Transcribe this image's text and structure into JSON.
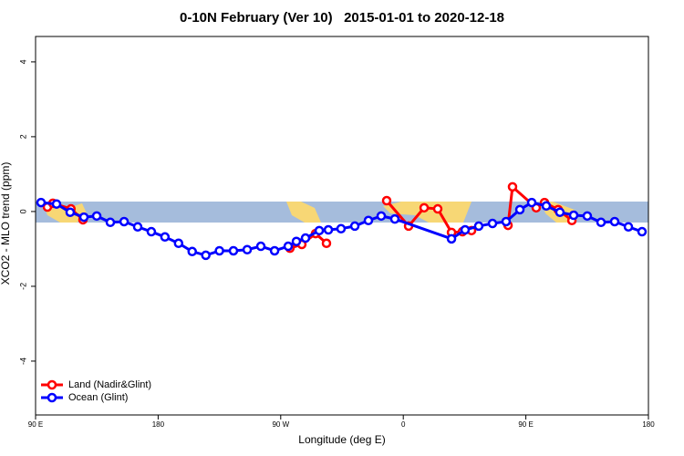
{
  "chart_data": {
    "type": "line",
    "title": "0-10N February (Ver 10)   2015-01-01 to 2020-12-18",
    "x_label": "Longitude (deg E)",
    "y_label": "XCO2 - MLO trend (ppm)",
    "xlim": [
      90,
      540
    ],
    "xticks": [
      {
        "value": 90,
        "label": "90 E"
      },
      180,
      {
        "value": 270,
        "label": "90 W"
      },
      {
        "value": 360,
        "label": "0"
      },
      {
        "value": 450,
        "label": "90 E"
      },
      {
        "value": 540,
        "label": "180"
      }
    ],
    "ylim": [
      -5.44,
      4.68
    ],
    "yticks": [
      -4,
      -2,
      0,
      2,
      4
    ],
    "legend": "bottomleft",
    "series": [
      {
        "name": "Land (Nadir&Glint)",
        "color": "#ff0000",
        "x": [
          98.7,
          102.7,
          116,
          124.8,
          null,
          276.8,
          285.5,
          295.6,
          303.6,
          null,
          347.8,
          363.9,
          375.3,
          385.3,
          395.4,
          403.4,
          410.1,
          null,
          436.9,
          440.2,
          457.6,
          463.7,
          473.7,
          483.8
        ],
        "values": [
          0.12,
          0.22,
          0.07,
          -0.22,
          null,
          -0.98,
          -0.88,
          -0.59,
          -0.85,
          null,
          0.29,
          -0.39,
          0.1,
          0.07,
          -0.56,
          -0.54,
          -0.51,
          null,
          -0.37,
          0.66,
          0.1,
          0.24,
          0.05,
          -0.24
        ]
      },
      {
        "name": "Ocean (Glint)",
        "color": "#0000ff",
        "x": [
          94,
          105.4,
          115.4,
          125.5,
          134.9,
          144.9,
          155,
          165,
          175,
          185,
          195,
          205,
          215,
          225,
          235.3,
          245.4,
          255.4,
          265.5,
          275.5,
          281.5,
          288.2,
          298.3,
          305,
          314.3,
          324.4,
          334.4,
          343.8,
          353.8,
          395.4,
          405.4,
          415.4,
          425.5,
          435.5,
          445.6,
          454.3,
          465,
          475,
          485.1,
          495.1,
          505.2,
          515.2,
          525.3,
          535.3
        ],
        "values": [
          0.24,
          0.2,
          -0.02,
          -0.15,
          -0.12,
          -0.29,
          -0.27,
          -0.41,
          -0.54,
          -0.68,
          -0.85,
          -1.07,
          -1.17,
          -1.05,
          -1.05,
          -1.02,
          -0.93,
          -1.05,
          -0.93,
          -0.8,
          -0.71,
          -0.51,
          -0.49,
          -0.46,
          -0.39,
          -0.24,
          -0.12,
          -0.2,
          -0.73,
          -0.49,
          -0.39,
          -0.32,
          -0.27,
          0.05,
          0.24,
          0.15,
          -0.02,
          -0.1,
          -0.12,
          -0.29,
          -0.27,
          -0.41,
          -0.54
        ]
      }
    ]
  }
}
